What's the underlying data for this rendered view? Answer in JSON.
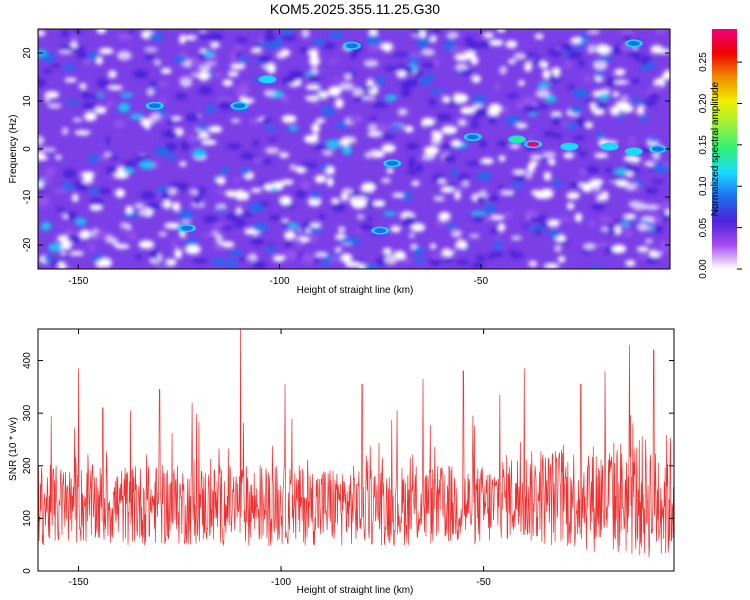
{
  "title": "KOM5.2025.355.11.25.G30",
  "chart_data": [
    {
      "type": "heatmap",
      "xlabel": "Height of straight line (km)",
      "ylabel": "Frequency (Hz)",
      "xlim": [
        -160,
        -3
      ],
      "ylim": [
        -25,
        25
      ],
      "xticks": [
        -150,
        -100,
        -50
      ],
      "yticks": [
        -20,
        -10,
        0,
        10,
        20
      ],
      "colorbar": {
        "label": "Normalized spectral amplitude",
        "range": [
          0,
          0.29
        ],
        "ticks": [
          "0.00",
          "0.05",
          "0.10",
          "0.15",
          "0.20",
          "0.25"
        ],
        "colors": [
          "#ffffff",
          "#a94cf0",
          "#4b22d9",
          "#1f6df0",
          "#19d9ff",
          "#2df07a",
          "#9bf03a",
          "#f0f000",
          "#f08a00",
          "#f00000",
          "#f0007a"
        ]
      },
      "hotspots": [
        {
          "x": -37,
          "y": 1,
          "value": 0.28
        },
        {
          "x": -41,
          "y": 2,
          "value": 0.14
        },
        {
          "x": -28,
          "y": 0.5,
          "value": 0.12
        },
        {
          "x": -18,
          "y": 0.5,
          "value": 0.12
        },
        {
          "x": -12,
          "y": -0.5,
          "value": 0.11
        },
        {
          "x": -6,
          "y": 0,
          "value": 0.1
        },
        {
          "x": -52,
          "y": 2.5,
          "value": 0.1
        },
        {
          "x": -103,
          "y": 14.5,
          "value": 0.11
        },
        {
          "x": -110,
          "y": 9,
          "value": 0.09
        },
        {
          "x": -131,
          "y": 9,
          "value": 0.09
        },
        {
          "x": -123,
          "y": -16.5,
          "value": 0.1
        },
        {
          "x": -72,
          "y": -3,
          "value": 0.09
        },
        {
          "x": -75,
          "y": -17,
          "value": 0.1
        },
        {
          "x": -12,
          "y": 22,
          "value": 0.09
        },
        {
          "x": -82,
          "y": 21.5,
          "value": 0.08
        }
      ]
    },
    {
      "type": "line",
      "xlabel": "Height of straight line (km)",
      "ylabel": "SNR (10 * v/v)",
      "xlim": [
        -160,
        -3
      ],
      "ylim": [
        0,
        460
      ],
      "xticks": [
        -150,
        -100,
        -50
      ],
      "yticks": [
        0,
        100,
        200,
        300,
        400
      ],
      "color": "#f03030",
      "baseline": 125,
      "spikes": [
        {
          "x": -110,
          "y": 460
        },
        {
          "x": -150,
          "y": 385
        },
        {
          "x": -144,
          "y": 310
        },
        {
          "x": -122,
          "y": 320
        },
        {
          "x": -130,
          "y": 345
        },
        {
          "x": -99,
          "y": 355
        },
        {
          "x": -80,
          "y": 355
        },
        {
          "x": -65,
          "y": 365
        },
        {
          "x": -55,
          "y": 380
        },
        {
          "x": -40,
          "y": 385
        },
        {
          "x": -20,
          "y": 380
        },
        {
          "x": -14,
          "y": 430
        },
        {
          "x": -8,
          "y": 420
        },
        {
          "x": -26,
          "y": 355
        },
        {
          "x": -46,
          "y": 335
        }
      ]
    }
  ]
}
